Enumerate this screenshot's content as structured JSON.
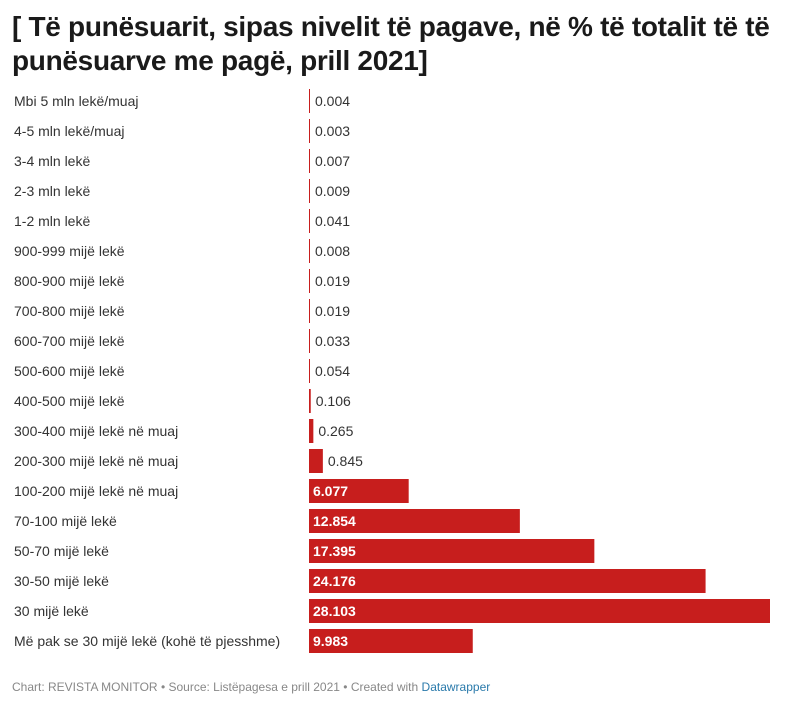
{
  "title": "[ Të punësuarit, sipas nivelit të pagave, në % të totalit të të punësuarve me pagë, prill 2021]",
  "footer": {
    "chart_credit": "Chart: REVISTA MONITOR",
    "separator": "•",
    "source": "Source: Listëpagesa e prill 2021",
    "created_with": "Created with",
    "tool": "Datawrapper"
  },
  "colors": {
    "bar": "#c71e1d",
    "label_inside": "#ffffff",
    "label_outside": "#333333",
    "link": "#2a7aab"
  },
  "chart_data": {
    "type": "bar",
    "orientation": "horizontal",
    "title": "[ Të punësuarit, sipas nivelit të pagave, në % të totalit të të punësuarve me pagë, prill 2021]",
    "xlabel": "",
    "ylabel": "",
    "xlim": [
      0,
      28.103
    ],
    "grid": false,
    "categories": [
      "Mbi 5 mln lekë/muaj",
      "4-5 mln lekë/muaj",
      "3-4 mln lekë",
      "2-3 mln lekë",
      "1-2 mln lekë",
      "900-999 mijë lekë",
      "800-900 mijë lekë",
      "700-800 mijë lekë",
      "600-700 mijë lekë",
      "500-600 mijë lekë",
      "400-500 mijë lekë",
      "300-400 mijë lekë në muaj",
      "200-300 mijë lekë në muaj",
      "100-200 mijë lekë në muaj",
      "70-100 mijë lekë",
      "50-70 mijë lekë",
      "30-50 mijë lekë",
      "30 mijë lekë",
      "Më pak se 30 mijë lekë (kohë të pjesshme)"
    ],
    "values": [
      0.004,
      0.003,
      0.007,
      0.009,
      0.041,
      0.008,
      0.019,
      0.019,
      0.033,
      0.054,
      0.106,
      0.265,
      0.845,
      6.077,
      12.854,
      17.395,
      24.176,
      28.103,
      9.983
    ],
    "value_labels": [
      "0.004",
      "0.003",
      "0.007",
      "0.009",
      "0.041",
      "0.008",
      "0.019",
      "0.019",
      "0.033",
      "0.054",
      "0.106",
      "0.265",
      "0.845",
      "6.077",
      "12.854",
      "17.395",
      "24.176",
      "28.103",
      "9.983"
    ]
  }
}
